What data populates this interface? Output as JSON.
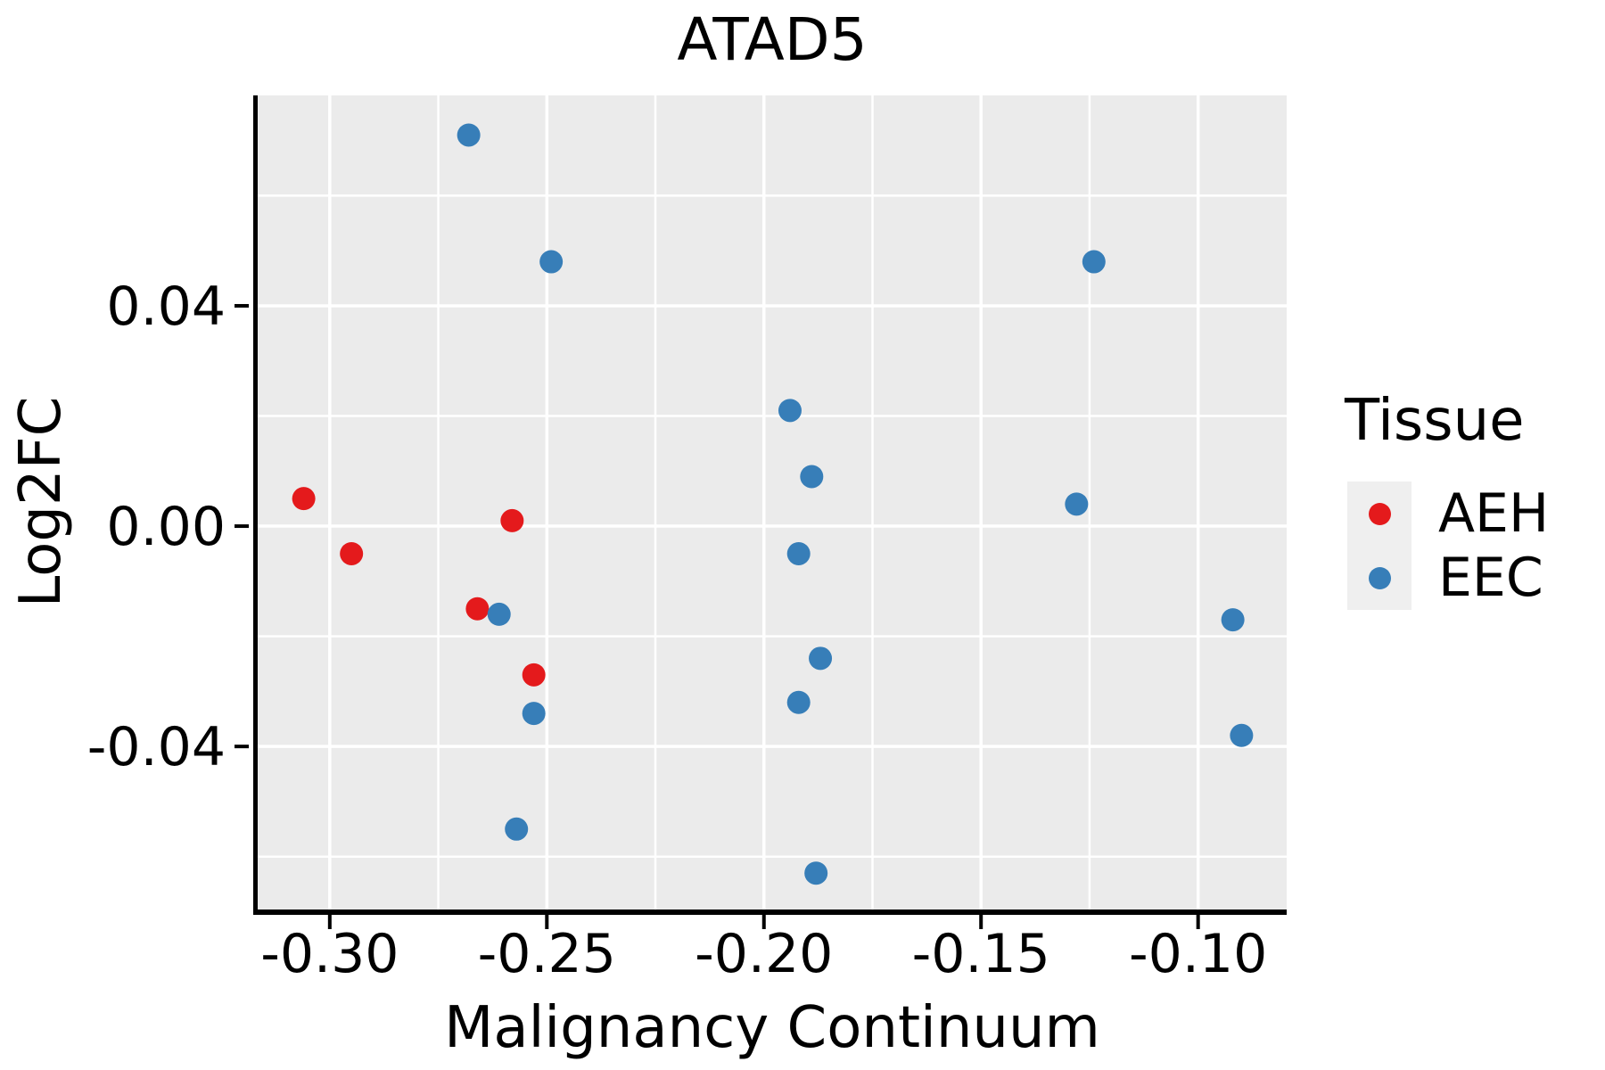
{
  "title": "ATAD5",
  "chart_data": {
    "type": "scatter",
    "title": "ATAD5",
    "xlabel": "Malignancy Continuum",
    "ylabel": "Log2FC",
    "xlim": [
      -0.3166,
      -0.0796
    ],
    "ylim": [
      -0.0696,
      0.0782
    ],
    "grid": true,
    "panel_bg": "#ebebeb",
    "grid_color": "#ffffff",
    "axis_color": "#000000",
    "legend_position": "right",
    "x_major_ticks": [
      -0.3,
      -0.25,
      -0.2,
      -0.15,
      -0.1
    ],
    "x_major_labels": [
      "-0.30",
      "-0.25",
      "-0.20",
      "-0.15",
      "-0.10"
    ],
    "x_minor_ticks": [
      -0.275,
      -0.225,
      -0.175,
      -0.125
    ],
    "y_major_ticks": [
      0.04,
      0.0,
      -0.04
    ],
    "y_major_labels": [
      "0.04",
      "0.00",
      "-0.04"
    ],
    "y_minor_ticks": [
      0.06,
      0.02,
      -0.02,
      -0.06
    ],
    "series": [
      {
        "name": "AEH",
        "color": "#e41a1c",
        "points": [
          [
            -0.306,
            0.005
          ],
          [
            -0.295,
            -0.005
          ],
          [
            -0.258,
            0.001
          ],
          [
            -0.266,
            -0.015
          ],
          [
            -0.253,
            -0.027
          ]
        ]
      },
      {
        "name": "EEC",
        "color": "#377eb8",
        "points": [
          [
            -0.268,
            0.071
          ],
          [
            -0.249,
            0.048
          ],
          [
            -0.124,
            0.048
          ],
          [
            -0.194,
            0.021
          ],
          [
            -0.189,
            0.009
          ],
          [
            -0.128,
            0.004
          ],
          [
            -0.192,
            -0.005
          ],
          [
            -0.261,
            -0.016
          ],
          [
            -0.187,
            -0.024
          ],
          [
            -0.192,
            -0.032
          ],
          [
            -0.253,
            -0.034
          ],
          [
            -0.092,
            -0.017
          ],
          [
            -0.09,
            -0.038
          ],
          [
            -0.257,
            -0.055
          ],
          [
            -0.188,
            -0.063
          ]
        ]
      }
    ]
  },
  "legend": {
    "title": "Tissue",
    "items": [
      {
        "label": "AEH",
        "color": "#e41a1c"
      },
      {
        "label": "EEC",
        "color": "#377eb8"
      }
    ]
  }
}
